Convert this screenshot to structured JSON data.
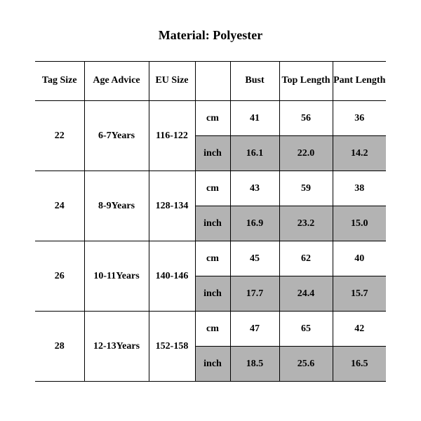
{
  "title": "Material: Polyester",
  "colors": {
    "background": "#ffffff",
    "text": "#000000",
    "border": "#000000",
    "shade": "#b3b3b3"
  },
  "table": {
    "columns": [
      "Tag Size",
      "Age Advice",
      "EU Size",
      "",
      "Bust",
      "Top Length",
      "Pant Length"
    ],
    "unit_labels": {
      "cm": "cm",
      "inch": "inch"
    },
    "rows": [
      {
        "tag": "22",
        "age": "6-7Years",
        "eu": "116-122",
        "cm": {
          "bust": "41",
          "top": "56",
          "pant": "36"
        },
        "inch": {
          "bust": "16.1",
          "top": "22.0",
          "pant": "14.2"
        }
      },
      {
        "tag": "24",
        "age": "8-9Years",
        "eu": "128-134",
        "cm": {
          "bust": "43",
          "top": "59",
          "pant": "38"
        },
        "inch": {
          "bust": "16.9",
          "top": "23.2",
          "pant": "15.0"
        }
      },
      {
        "tag": "26",
        "age": "10-11Years",
        "eu": "140-146",
        "cm": {
          "bust": "45",
          "top": "62",
          "pant": "40"
        },
        "inch": {
          "bust": "17.7",
          "top": "24.4",
          "pant": "15.7"
        }
      },
      {
        "tag": "28",
        "age": "12-13Years",
        "eu": "152-158",
        "cm": {
          "bust": "47",
          "top": "65",
          "pant": "42"
        },
        "inch": {
          "bust": "18.5",
          "top": "25.6",
          "pant": "16.5"
        }
      }
    ]
  }
}
